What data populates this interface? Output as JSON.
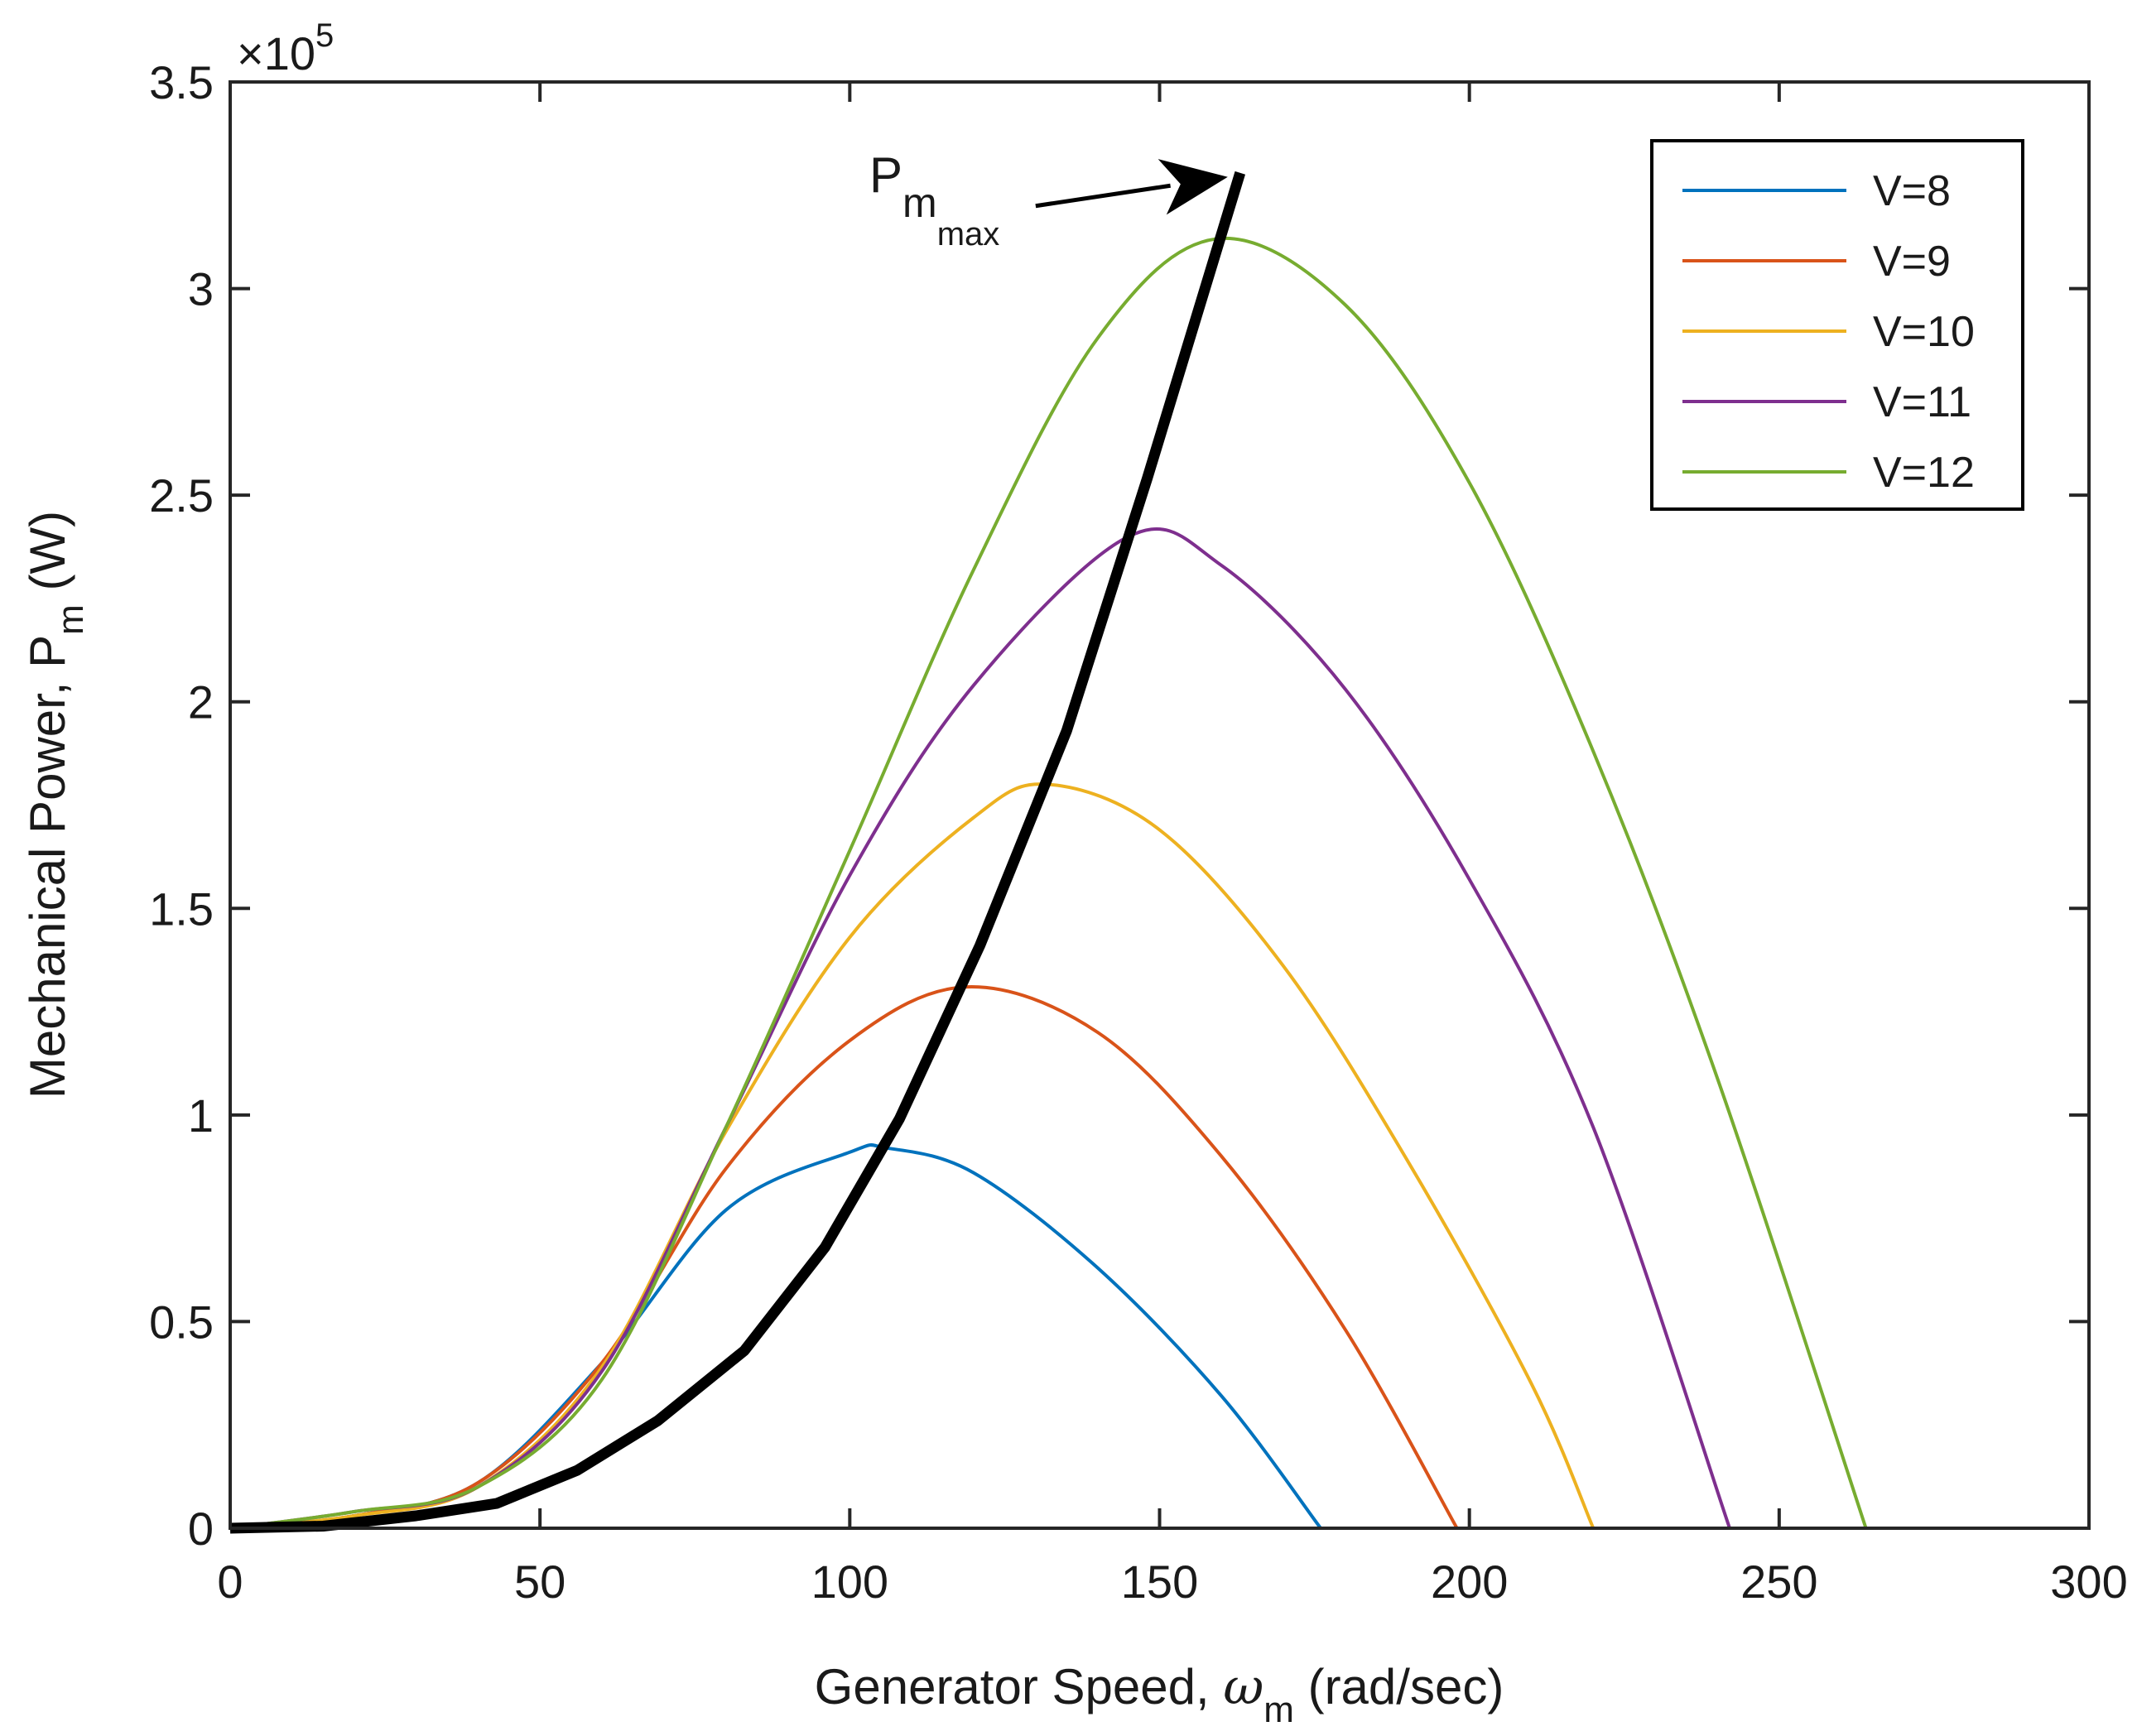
{
  "chart_data": {
    "type": "line",
    "title": "",
    "xlabel": {
      "prefix": "Generator Speed, ",
      "symbol": "ω",
      "sub": "m",
      "suffix": " (rad/sec)"
    },
    "ylabel": {
      "prefix": "Mechanical Power, P",
      "sub": "m",
      "suffix": " (W)"
    },
    "xlim": [
      0,
      300
    ],
    "ylim": [
      0,
      3.5
    ],
    "xticks": [
      "0",
      "50",
      "100",
      "150",
      "200",
      "250",
      "300"
    ],
    "yticks": [
      "0",
      "0.5",
      "1",
      "1.5",
      "2",
      "2.5",
      "3",
      "3.5"
    ],
    "y_exponent": {
      "base": "×10",
      "exp": "5"
    },
    "legend_position": "top-right",
    "grid": false,
    "series": [
      {
        "name": "V=8",
        "color": "#0072BD",
        "x": [
          0,
          20,
          40,
          60,
          80,
          100,
          106,
          120,
          140,
          160,
          176
        ],
        "y": [
          0,
          0.03,
          0.11,
          0.4,
          0.77,
          0.91,
          0.92,
          0.86,
          0.63,
          0.32,
          0
        ]
      },
      {
        "name": "V=9",
        "color": "#D95319",
        "x": [
          0,
          20,
          40,
          60,
          80,
          100,
          119,
          140,
          160,
          180,
          198
        ],
        "y": [
          0,
          0.03,
          0.11,
          0.4,
          0.87,
          1.18,
          1.31,
          1.2,
          0.9,
          0.48,
          0
        ]
      },
      {
        "name": "V=10",
        "color": "#EDB120",
        "x": [
          0,
          20,
          40,
          60,
          80,
          100,
          120,
          132,
          150,
          170,
          190,
          210,
          220
        ],
        "y": [
          0,
          0.03,
          0.1,
          0.39,
          0.96,
          1.43,
          1.72,
          1.8,
          1.69,
          1.36,
          0.89,
          0.35,
          0
        ]
      },
      {
        "name": "V=11",
        "color": "#7E2F8E",
        "x": [
          0,
          20,
          40,
          60,
          80,
          100,
          120,
          145,
          160,
          180,
          200,
          220,
          242
        ],
        "y": [
          0,
          0.04,
          0.1,
          0.38,
          0.97,
          1.58,
          2.04,
          2.4,
          2.33,
          2.03,
          1.57,
          0.97,
          0
        ]
      },
      {
        "name": "V=12",
        "color": "#77AC30",
        "x": [
          0,
          20,
          40,
          60,
          80,
          100,
          120,
          140,
          159,
          180,
          200,
          220,
          240,
          264
        ],
        "y": [
          0,
          0.04,
          0.1,
          0.36,
          0.97,
          1.64,
          2.32,
          2.88,
          3.12,
          2.96,
          2.53,
          1.88,
          1.09,
          0
        ]
      }
    ],
    "pmax_curve": {
      "color": "#000000",
      "x": [
        0,
        15,
        30,
        43,
        56,
        69,
        83,
        96,
        108,
        121,
        135,
        148,
        163
      ],
      "y": [
        0,
        0.005,
        0.03,
        0.06,
        0.14,
        0.26,
        0.43,
        0.68,
        0.99,
        1.41,
        1.93,
        2.54,
        3.28
      ]
    },
    "annotation": {
      "main": "P",
      "sub1": "m",
      "sub2": "max",
      "arrow_from": [
        130,
        3.2
      ],
      "arrow_to": [
        161,
        3.27
      ]
    }
  }
}
